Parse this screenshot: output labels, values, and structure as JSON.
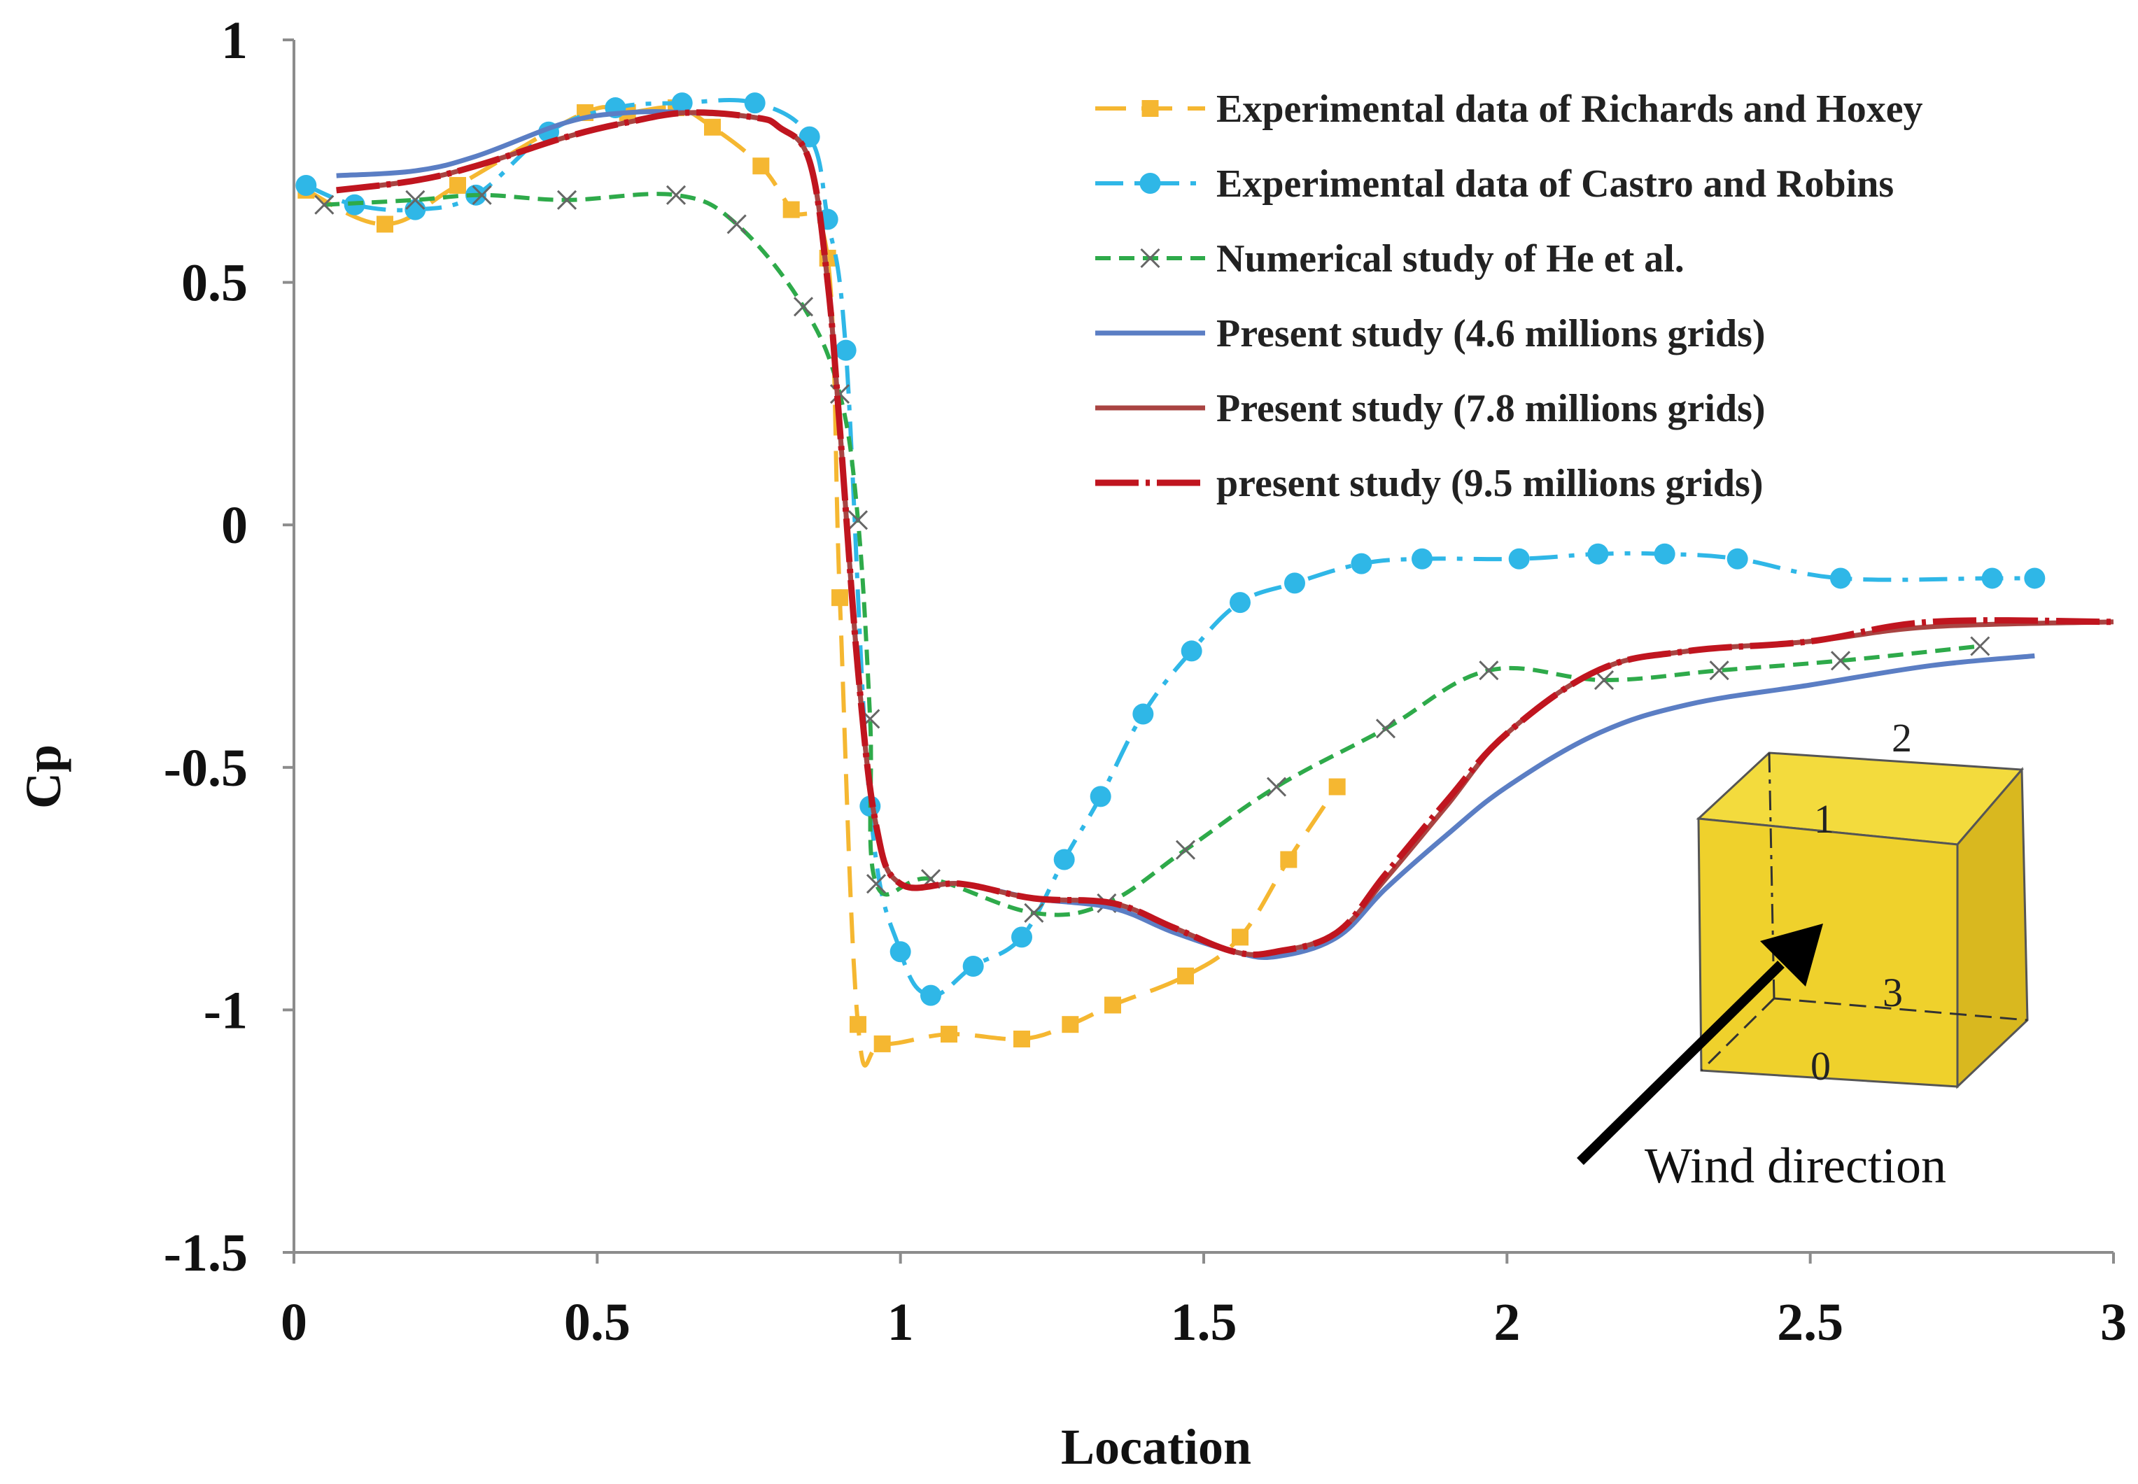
{
  "chart_data": {
    "type": "line",
    "xlabel": "Location",
    "ylabel": "Cp",
    "xlim": [
      0,
      3
    ],
    "ylim": [
      -1.5,
      1
    ],
    "xticks": [
      0,
      0.5,
      1,
      1.5,
      2,
      2.5,
      3
    ],
    "xtick_labels": [
      "0",
      "0.5",
      "1",
      "1.5",
      "2",
      "2.5",
      "3"
    ],
    "yticks": [
      1,
      0.5,
      0,
      -0.5,
      -1,
      -1.5
    ],
    "ytick_labels": [
      "1",
      "0.5",
      "0",
      "-0.5",
      "-1",
      "-1.5"
    ],
    "grid": false,
    "legend_position": "top-right",
    "series": [
      {
        "name": "Experimental data of Richards and Hoxey",
        "color": "#F5B731",
        "style": "long-dash-square",
        "x": [
          0.02,
          0.15,
          0.27,
          0.48,
          0.55,
          0.63,
          0.69,
          0.77,
          0.82,
          0.88,
          0.9,
          0.93,
          0.97,
          1.08,
          1.2,
          1.28,
          1.35,
          1.47,
          1.56,
          1.64,
          1.72
        ],
        "y": [
          0.69,
          0.62,
          0.7,
          0.85,
          0.85,
          0.86,
          0.82,
          0.74,
          0.65,
          0.55,
          -0.15,
          -1.03,
          -1.07,
          -1.05,
          -1.06,
          -1.03,
          -0.99,
          -0.93,
          -0.85,
          -0.69,
          -0.54
        ]
      },
      {
        "name": "Experimental data of Castro and Robins",
        "color": "#2FB7E7",
        "style": "dash-dot-circle",
        "x": [
          0.02,
          0.1,
          0.2,
          0.3,
          0.42,
          0.53,
          0.64,
          0.76,
          0.85,
          0.88,
          0.91,
          0.95,
          1.0,
          1.05,
          1.12,
          1.2,
          1.27,
          1.33,
          1.4,
          1.48,
          1.56,
          1.65,
          1.76,
          1.86,
          2.02,
          2.15,
          2.26,
          2.38,
          2.55,
          2.8,
          2.87
        ],
        "y": [
          0.7,
          0.66,
          0.65,
          0.68,
          0.81,
          0.86,
          0.87,
          0.87,
          0.8,
          0.63,
          0.36,
          -0.58,
          -0.88,
          -0.97,
          -0.91,
          -0.85,
          -0.69,
          -0.56,
          -0.39,
          -0.26,
          -0.16,
          -0.12,
          -0.08,
          -0.07,
          -0.07,
          -0.06,
          -0.06,
          -0.07,
          -0.11,
          -0.11,
          -0.11
        ]
      },
      {
        "name": "Numerical study of He et al.",
        "color": "#2EAA4A",
        "style": "dash-cross",
        "x": [
          0.05,
          0.2,
          0.31,
          0.45,
          0.63,
          0.73,
          0.84,
          0.9,
          0.93,
          0.95,
          0.96,
          1.05,
          1.22,
          1.34,
          1.47,
          1.62,
          1.8,
          1.97,
          2.16,
          2.35,
          2.55,
          2.78
        ],
        "y": [
          0.66,
          0.67,
          0.68,
          0.67,
          0.68,
          0.62,
          0.45,
          0.27,
          0.01,
          -0.4,
          -0.74,
          -0.73,
          -0.8,
          -0.78,
          -0.67,
          -0.54,
          -0.42,
          -0.3,
          -0.32,
          -0.3,
          -0.28,
          -0.25
        ]
      },
      {
        "name": "Present study (4.6 millions grids)",
        "color": "#5B7EC4",
        "style": "solid",
        "x": [
          0.07,
          0.2,
          0.3,
          0.45,
          0.55,
          0.65,
          0.76,
          0.8,
          0.85,
          0.88,
          0.9,
          0.93,
          0.96,
          1.0,
          1.1,
          1.22,
          1.35,
          1.45,
          1.55,
          1.62,
          1.72,
          1.8,
          1.9,
          2.0,
          2.15,
          2.3,
          2.5,
          2.7,
          2.87
        ],
        "y": [
          0.72,
          0.73,
          0.76,
          0.83,
          0.85,
          0.85,
          0.84,
          0.82,
          0.75,
          0.5,
          0.2,
          -0.3,
          -0.62,
          -0.74,
          -0.74,
          -0.77,
          -0.79,
          -0.84,
          -0.88,
          -0.89,
          -0.85,
          -0.75,
          -0.64,
          -0.54,
          -0.43,
          -0.37,
          -0.33,
          -0.29,
          -0.27
        ]
      },
      {
        "name": "Present study (7.8 millions grids)",
        "color": "#A94442",
        "style": "solid",
        "x": [
          0.07,
          0.2,
          0.3,
          0.45,
          0.55,
          0.65,
          0.76,
          0.8,
          0.85,
          0.88,
          0.9,
          0.93,
          0.96,
          1.0,
          1.1,
          1.22,
          1.35,
          1.45,
          1.55,
          1.62,
          1.72,
          1.8,
          1.9,
          2.0,
          2.15,
          2.3,
          2.5,
          2.7,
          3.0
        ],
        "y": [
          0.69,
          0.71,
          0.74,
          0.8,
          0.83,
          0.85,
          0.84,
          0.82,
          0.75,
          0.5,
          0.2,
          -0.3,
          -0.62,
          -0.74,
          -0.74,
          -0.77,
          -0.78,
          -0.83,
          -0.88,
          -0.88,
          -0.84,
          -0.73,
          -0.58,
          -0.43,
          -0.3,
          -0.26,
          -0.24,
          -0.21,
          -0.2
        ]
      },
      {
        "name": "present study (9.5 millions grids)",
        "color": "#C0151F",
        "style": "long-dash-dot",
        "x": [
          0.07,
          0.2,
          0.3,
          0.45,
          0.55,
          0.65,
          0.76,
          0.8,
          0.85,
          0.88,
          0.9,
          0.93,
          0.96,
          1.0,
          1.1,
          1.22,
          1.35,
          1.45,
          1.55,
          1.62,
          1.72,
          1.8,
          1.9,
          2.0,
          2.15,
          2.3,
          2.5,
          2.7,
          3.0
        ],
        "y": [
          0.69,
          0.71,
          0.74,
          0.8,
          0.83,
          0.85,
          0.84,
          0.82,
          0.75,
          0.5,
          0.2,
          -0.3,
          -0.62,
          -0.74,
          -0.74,
          -0.77,
          -0.78,
          -0.83,
          -0.88,
          -0.88,
          -0.84,
          -0.72,
          -0.57,
          -0.43,
          -0.3,
          -0.26,
          -0.24,
          -0.2,
          -0.2
        ]
      }
    ]
  },
  "inset": {
    "box_color": "#EFD12C",
    "edge_labels": [
      "2",
      "1",
      "3",
      "0"
    ],
    "caption": "Wind direction"
  }
}
